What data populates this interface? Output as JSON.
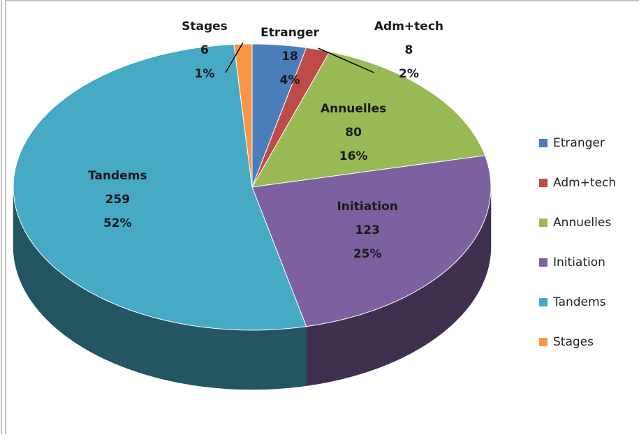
{
  "chart_data": {
    "type": "pie3d",
    "categories": [
      "Etranger",
      "Adm+tech",
      "Annuelles",
      "Initiation",
      "Tandems",
      "Stages"
    ],
    "values": [
      18,
      8,
      80,
      123,
      259,
      6
    ],
    "percentages": [
      "4%",
      "2%",
      "16%",
      "25%",
      "52%",
      "1%"
    ],
    "colors": [
      "#4a7ebb",
      "#be4b48",
      "#98b954",
      "#7d60a0",
      "#46aac5",
      "#f79646"
    ],
    "legend": "right"
  }
}
